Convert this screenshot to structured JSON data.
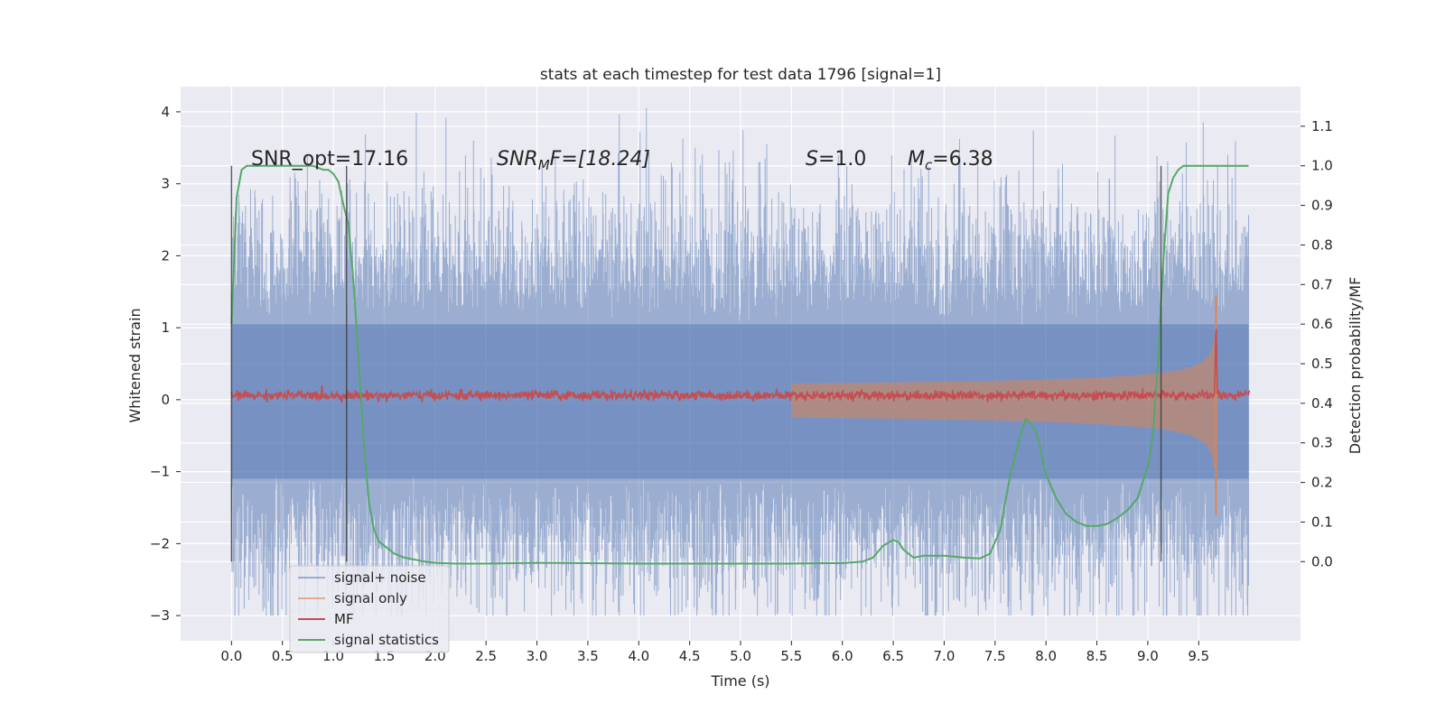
{
  "chart_data": {
    "type": "line",
    "title": "stats at each timestep for test data 1796 [signal=1]",
    "xlabel": "Time (s)",
    "ylabel_left": "Whitened strain",
    "ylabel_right": "Detection probability/MF",
    "xlim": [
      -0.5,
      10.5
    ],
    "ylim_left": [
      -3.35,
      4.35
    ],
    "ylim_right": [
      -0.2,
      1.2
    ],
    "xticks": [
      "0.0",
      "0.5",
      "1.0",
      "1.5",
      "2.0",
      "2.5",
      "3.0",
      "3.5",
      "4.0",
      "4.5",
      "5.0",
      "5.5",
      "6.0",
      "6.5",
      "7.0",
      "7.5",
      "8.0",
      "8.5",
      "9.0",
      "9.5"
    ],
    "xtick_values": [
      0.0,
      0.5,
      1.0,
      1.5,
      2.0,
      2.5,
      3.0,
      3.5,
      4.0,
      4.5,
      5.0,
      5.5,
      6.0,
      6.5,
      7.0,
      7.5,
      8.0,
      8.5,
      9.0,
      9.5
    ],
    "yticks_left": [
      "−3",
      "−2",
      "−1",
      "0",
      "1",
      "2",
      "3",
      "4"
    ],
    "ytick_values_left": [
      -3,
      -2,
      -1,
      0,
      1,
      2,
      3,
      4
    ],
    "yticks_right": [
      "0.0",
      "0.1",
      "0.2",
      "0.3",
      "0.4",
      "0.5",
      "0.6",
      "0.7",
      "0.8",
      "0.9",
      "1.0",
      "1.1"
    ],
    "ytick_values_right": [
      0.0,
      0.1,
      0.2,
      0.3,
      0.4,
      0.5,
      0.6,
      0.7,
      0.8,
      0.9,
      1.0,
      1.1
    ],
    "grid": true,
    "legend_position": "lower-left",
    "annotations": {
      "snr_opt": "SNR_opt=17.16",
      "snr_mf_main": "SNR",
      "snr_mf_sub": "M",
      "snr_mf_rest": "F=[18.24]",
      "s_main": "S",
      "s_rest": "=1.0",
      "mc_main": "M",
      "mc_sub": "c",
      "mc_rest": "=6.38"
    },
    "vertical_markers": [
      0.0,
      1.13,
      9.13
    ],
    "series": [
      {
        "name": "signal+ noise",
        "color": "#4c72b0",
        "axis": "left",
        "description_values": {
          "x_range": [
            0.0,
            9.99
          ],
          "y_range": [
            -3.0,
            4.05
          ],
          "typical_amplitude": 1.5
        }
      },
      {
        "name": "signal only",
        "color": "#dd8452",
        "axis": "left",
        "description_values": {
          "x_range": [
            5.5,
            9.67
          ],
          "peak_amplitude": 1.4,
          "merger_time": 9.67
        }
      },
      {
        "name": "MF",
        "color": "#c44e52",
        "axis": "right",
        "description_values": {
          "baseline": 0.42,
          "peak_time": 9.67,
          "peak_value": 0.59
        }
      },
      {
        "name": "signal statistics",
        "color": "#55a868",
        "axis": "right",
        "x": [
          0.0,
          0.05,
          0.1,
          0.15,
          0.2,
          0.3,
          0.4,
          0.5,
          0.6,
          0.7,
          0.8,
          0.9,
          0.95,
          1.0,
          1.05,
          1.1,
          1.15,
          1.2,
          1.25,
          1.3,
          1.35,
          1.4,
          1.45,
          1.5,
          1.6,
          1.7,
          1.8,
          1.9,
          2.0,
          2.2,
          2.5,
          3.0,
          3.5,
          4.0,
          4.5,
          5.0,
          5.5,
          5.8,
          6.0,
          6.2,
          6.3,
          6.4,
          6.5,
          6.55,
          6.6,
          6.7,
          6.8,
          7.0,
          7.2,
          7.35,
          7.45,
          7.55,
          7.65,
          7.75,
          7.8,
          7.85,
          7.9,
          7.95,
          8.0,
          8.1,
          8.2,
          8.3,
          8.4,
          8.5,
          8.6,
          8.7,
          8.8,
          8.9,
          9.0,
          9.05,
          9.1,
          9.15,
          9.2,
          9.25,
          9.3,
          9.35,
          9.4,
          9.5,
          9.7,
          9.99
        ],
        "y": [
          0.6,
          0.92,
          0.99,
          1.0,
          1.0,
          1.0,
          1.0,
          1.0,
          1.0,
          1.0,
          1.0,
          0.99,
          0.99,
          0.98,
          0.96,
          0.9,
          0.85,
          0.7,
          0.5,
          0.3,
          0.15,
          0.08,
          0.05,
          0.04,
          0.02,
          0.01,
          0.005,
          0.0,
          -0.003,
          -0.005,
          -0.005,
          -0.003,
          -0.004,
          -0.005,
          -0.005,
          -0.005,
          -0.005,
          -0.004,
          -0.004,
          0.0,
          0.01,
          0.04,
          0.055,
          0.05,
          0.03,
          0.01,
          0.015,
          0.015,
          0.01,
          0.008,
          0.02,
          0.08,
          0.22,
          0.32,
          0.36,
          0.35,
          0.33,
          0.28,
          0.22,
          0.16,
          0.12,
          0.1,
          0.09,
          0.09,
          0.095,
          0.11,
          0.13,
          0.16,
          0.24,
          0.32,
          0.5,
          0.75,
          0.93,
          0.97,
          0.99,
          1.0,
          1.0,
          1.0,
          1.0,
          1.0
        ]
      }
    ]
  }
}
